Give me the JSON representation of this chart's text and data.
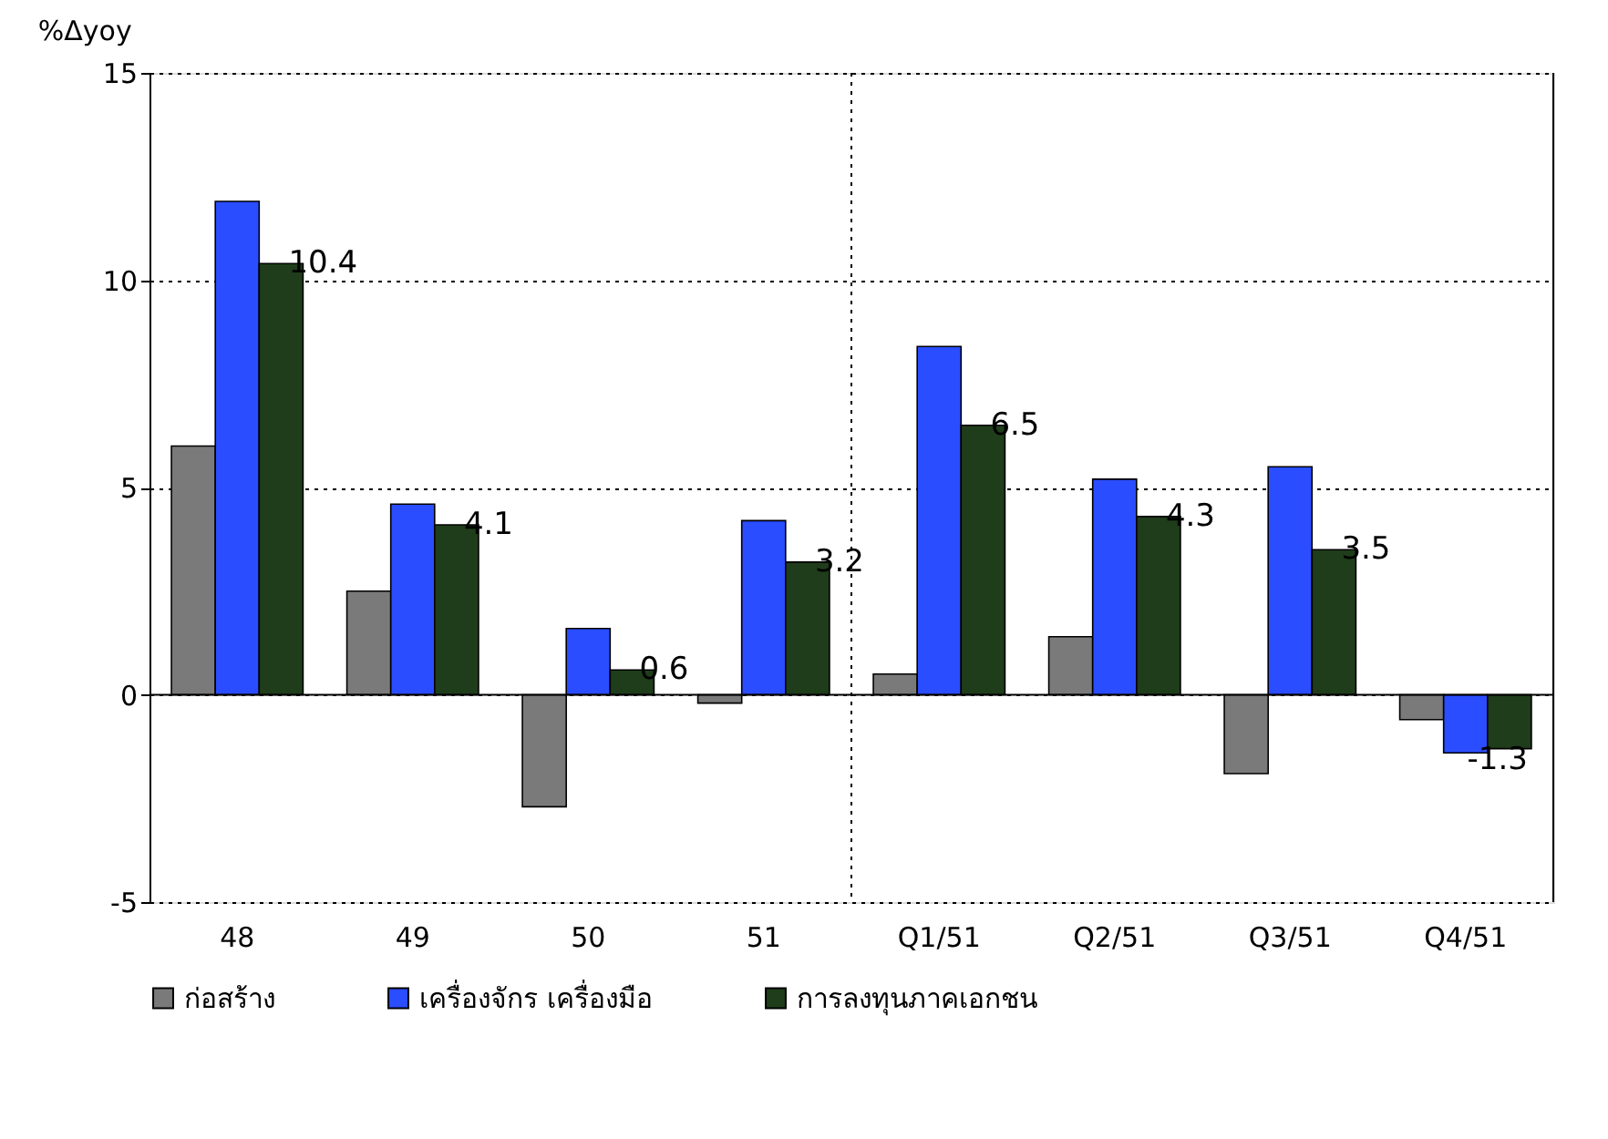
{
  "chart_data": {
    "type": "bar",
    "ylabel": "%Δyoy",
    "categories": [
      "48",
      "49",
      "50",
      "51",
      "Q1/51",
      "Q2/51",
      "Q3/51",
      "Q4/51"
    ],
    "series": [
      {
        "name": "ก่อสร้าง",
        "color": "#7a7a7a",
        "values": [
          6.0,
          2.5,
          -2.7,
          -0.2,
          0.5,
          1.4,
          -1.9,
          -0.6
        ]
      },
      {
        "name": "เครื่องจักร เครื่องมือ",
        "color": "#2a4dff",
        "values": [
          11.9,
          4.6,
          1.6,
          4.2,
          8.4,
          5.2,
          5.5,
          -1.4
        ]
      },
      {
        "name": "การลงทุนภาคเอกชน",
        "color": "#1f3d1a",
        "values": [
          10.4,
          4.1,
          0.6,
          3.2,
          6.5,
          4.3,
          3.5,
          -1.3
        ],
        "value_labels": [
          "10.4",
          "4.1",
          "0.6",
          "3.2",
          "6.5",
          "4.3",
          "3.5",
          "-1.3"
        ]
      }
    ],
    "ylim": [
      -5,
      15
    ],
    "yticks": [
      -5,
      0,
      5,
      10,
      15
    ],
    "grid": "y",
    "legend": "bottom"
  }
}
